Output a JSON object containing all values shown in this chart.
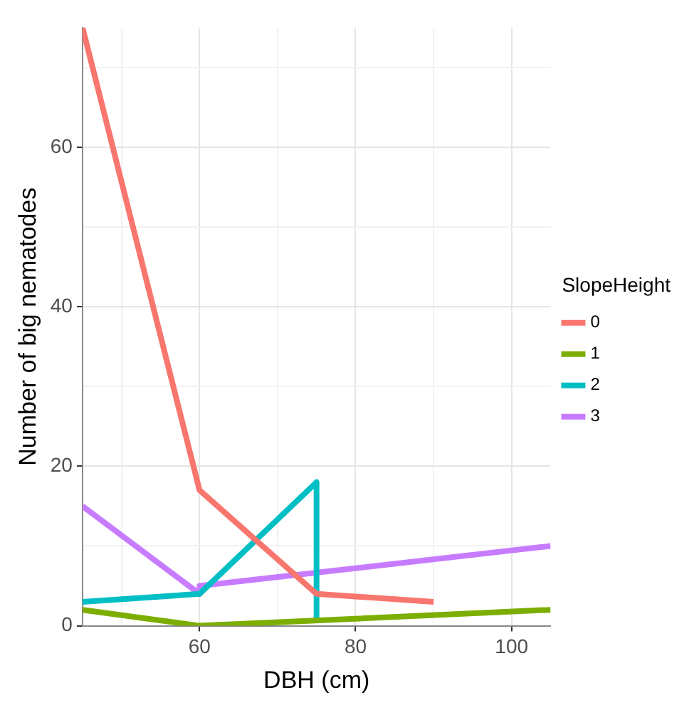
{
  "chart_data": {
    "type": "line",
    "xlabel": "DBH (cm)",
    "ylabel": "Number of big nematodes",
    "legend_title": "SlopeHeight",
    "legend": "right",
    "grid": true,
    "marker": "none",
    "line_style": "solid",
    "xlim": [
      45,
      105
    ],
    "xticks": [
      {
        "value": 50,
        "label": null
      },
      60,
      {
        "value": 70,
        "label": null
      },
      80,
      {
        "value": 90,
        "label": null
      },
      100
    ],
    "ylim": [
      0,
      75
    ],
    "yticks": [
      0,
      {
        "value": 10,
        "label": null
      },
      20,
      {
        "value": 30,
        "label": null
      },
      40,
      {
        "value": 50,
        "label": null
      },
      60,
      {
        "value": 70,
        "label": null
      }
    ],
    "series": [
      {
        "name": "0",
        "color": "#f8766d",
        "x": [
          45,
          60,
          75,
          90
        ],
        "values": [
          75,
          17,
          4,
          3
        ]
      },
      {
        "name": "1",
        "color": "#7cae00",
        "x": [
          45,
          60,
          105
        ],
        "values": [
          2,
          0,
          2
        ]
      },
      {
        "name": "2",
        "color": "#00bfc4",
        "x": [
          45,
          60,
          75,
          75
        ],
        "values": [
          3,
          4,
          18,
          1
        ]
      },
      {
        "name": "3",
        "color": "#c77cff",
        "x": [
          45,
          60,
          60,
          105
        ],
        "values": [
          15,
          4,
          5,
          10
        ]
      }
    ]
  }
}
